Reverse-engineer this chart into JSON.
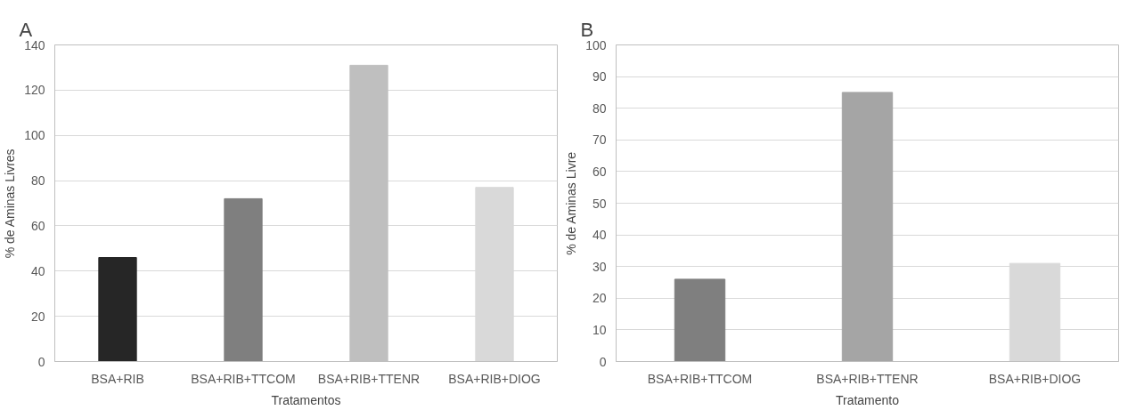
{
  "chart_data": [
    {
      "type": "bar",
      "title": "A",
      "xlabel": "Tratamentos",
      "ylabel": "% de Aminas Livres",
      "categories": [
        "BSA+RIB",
        "BSA+RIB+TTCOM",
        "BSA+RIB+TTENR",
        "BSA+RIB+DIOG"
      ],
      "values": [
        46,
        72,
        131,
        77
      ],
      "colors": [
        "#262626",
        "#7f7f7f",
        "#bfbfbf",
        "#d9d9d9"
      ],
      "ylim": [
        0,
        140
      ],
      "yticks": [
        0,
        20,
        40,
        60,
        80,
        100,
        120,
        140
      ],
      "grid": "y"
    },
    {
      "type": "bar",
      "title": "B",
      "xlabel": "Tratamento",
      "ylabel": "% de Aminas Livre",
      "categories": [
        "BSA+RIB+TTCOM",
        "BSA+RIB+TTENR",
        "BSA+RIB+DIOG"
      ],
      "values": [
        26,
        85,
        31
      ],
      "colors": [
        "#7f7f7f",
        "#a5a5a5",
        "#d9d9d9"
      ],
      "ylim": [
        0,
        100
      ],
      "yticks": [
        0,
        10,
        20,
        30,
        40,
        50,
        60,
        70,
        80,
        90,
        100
      ],
      "grid": "y"
    }
  ]
}
